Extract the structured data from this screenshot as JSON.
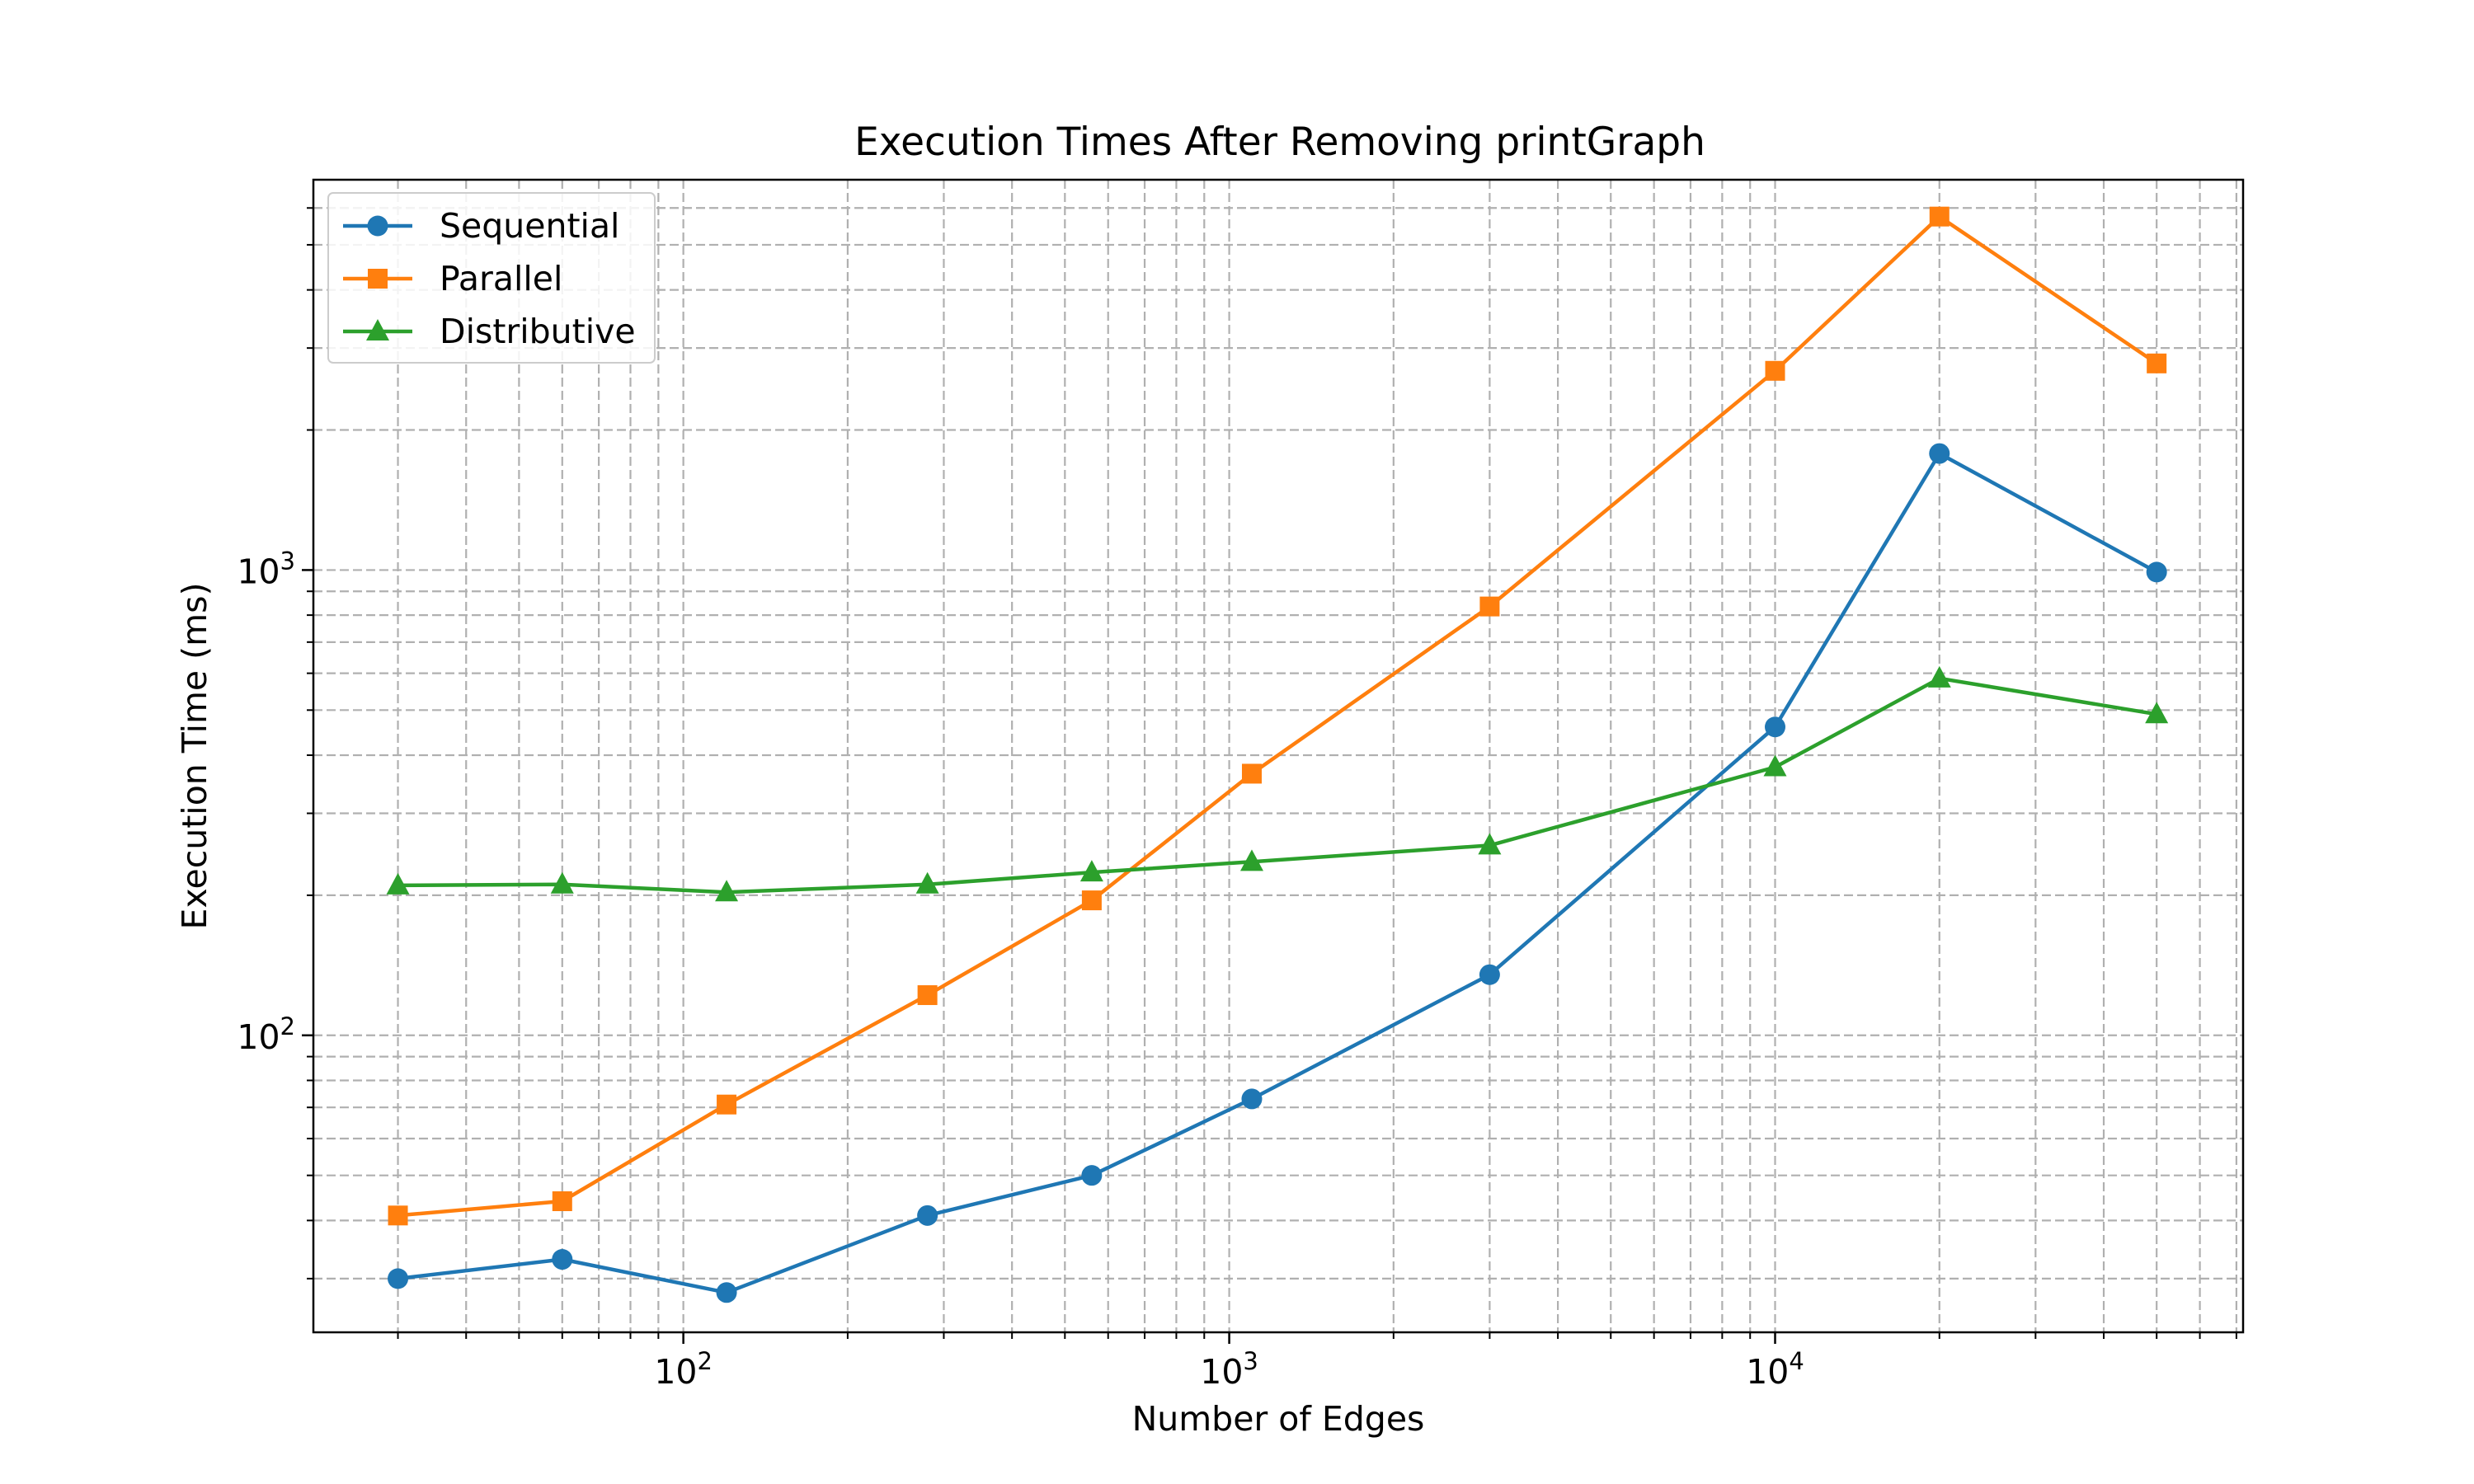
{
  "chart_data": {
    "type": "line",
    "title": "Execution Times After Removing printGraph",
    "xlabel": "Number of Edges",
    "ylabel": "Execution Time (ms)",
    "xscale": "log",
    "yscale": "log",
    "xlim": [
      21,
      72000
    ],
    "ylim": [
      23,
      6900
    ],
    "grid": true,
    "legend_position": "upper left",
    "x_ticks": [
      {
        "value": 100,
        "base": "10",
        "exp": "2"
      },
      {
        "value": 1000,
        "base": "10",
        "exp": "3"
      },
      {
        "value": 10000,
        "base": "10",
        "exp": "4"
      }
    ],
    "y_ticks": [
      {
        "value": 100,
        "base": "10",
        "exp": "2"
      },
      {
        "value": 1000,
        "base": "10",
        "exp": "3"
      }
    ],
    "x": [
      30,
      60,
      120,
      280,
      560,
      1100,
      3000,
      10000,
      20000,
      50000
    ],
    "series": [
      {
        "name": "Sequential",
        "color": "#1f77b4",
        "marker": "circle",
        "values": [
          30,
          33,
          28,
          41,
          50,
          73,
          135,
          460,
          1780,
          990
        ]
      },
      {
        "name": "Parallel",
        "color": "#ff7f0e",
        "marker": "square",
        "values": [
          41,
          44,
          71,
          122,
          195,
          365,
          835,
          2680,
          5750,
          2780
        ]
      },
      {
        "name": "Distributive",
        "color": "#2ca02c",
        "marker": "triangle",
        "values": [
          210,
          211,
          203,
          211,
          224,
          236,
          256,
          377,
          585,
          490
        ]
      }
    ]
  }
}
